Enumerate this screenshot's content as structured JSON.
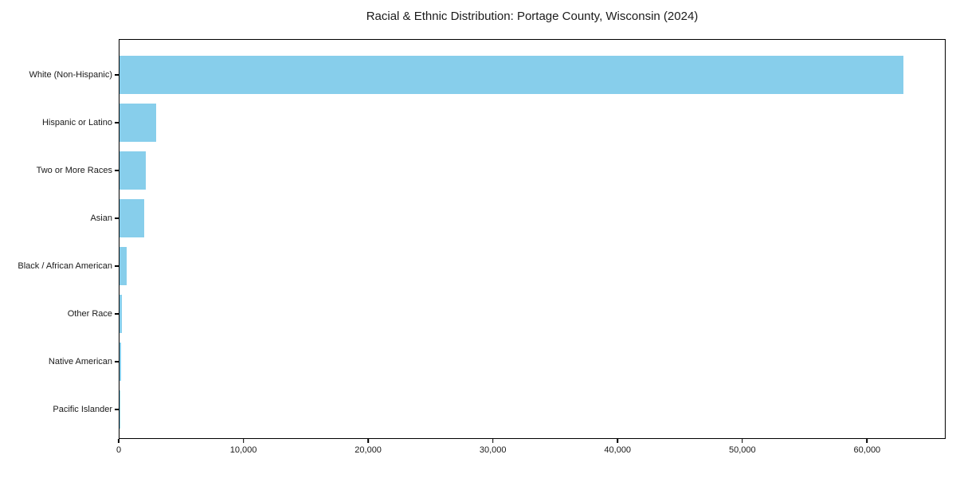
{
  "chart_data": {
    "type": "bar",
    "orientation": "horizontal",
    "title": "Racial & Ethnic Distribution: Portage County, Wisconsin (2024)",
    "categories": [
      "White (Non-Hispanic)",
      "Hispanic or Latino",
      "Two or More Races",
      "Asian",
      "Black / African American",
      "Other Race",
      "Native American",
      "Pacific Islander"
    ],
    "values": [
      63000,
      2950,
      2100,
      2000,
      600,
      210,
      100,
      25
    ],
    "xticks": [
      0,
      10000,
      20000,
      30000,
      40000,
      50000,
      60000
    ],
    "xtick_labels": [
      "0",
      "10,000",
      "20,000",
      "30,000",
      "40,000",
      "50,000",
      "60,000"
    ],
    "xlim": [
      0,
      66300
    ],
    "xlabel": "",
    "ylabel": "",
    "grid": "off",
    "legend": "none",
    "bar_color": "#87CEEB",
    "axis_color": "#000000",
    "text_color": "#1a1a1a",
    "background_color": "#ffffff"
  }
}
